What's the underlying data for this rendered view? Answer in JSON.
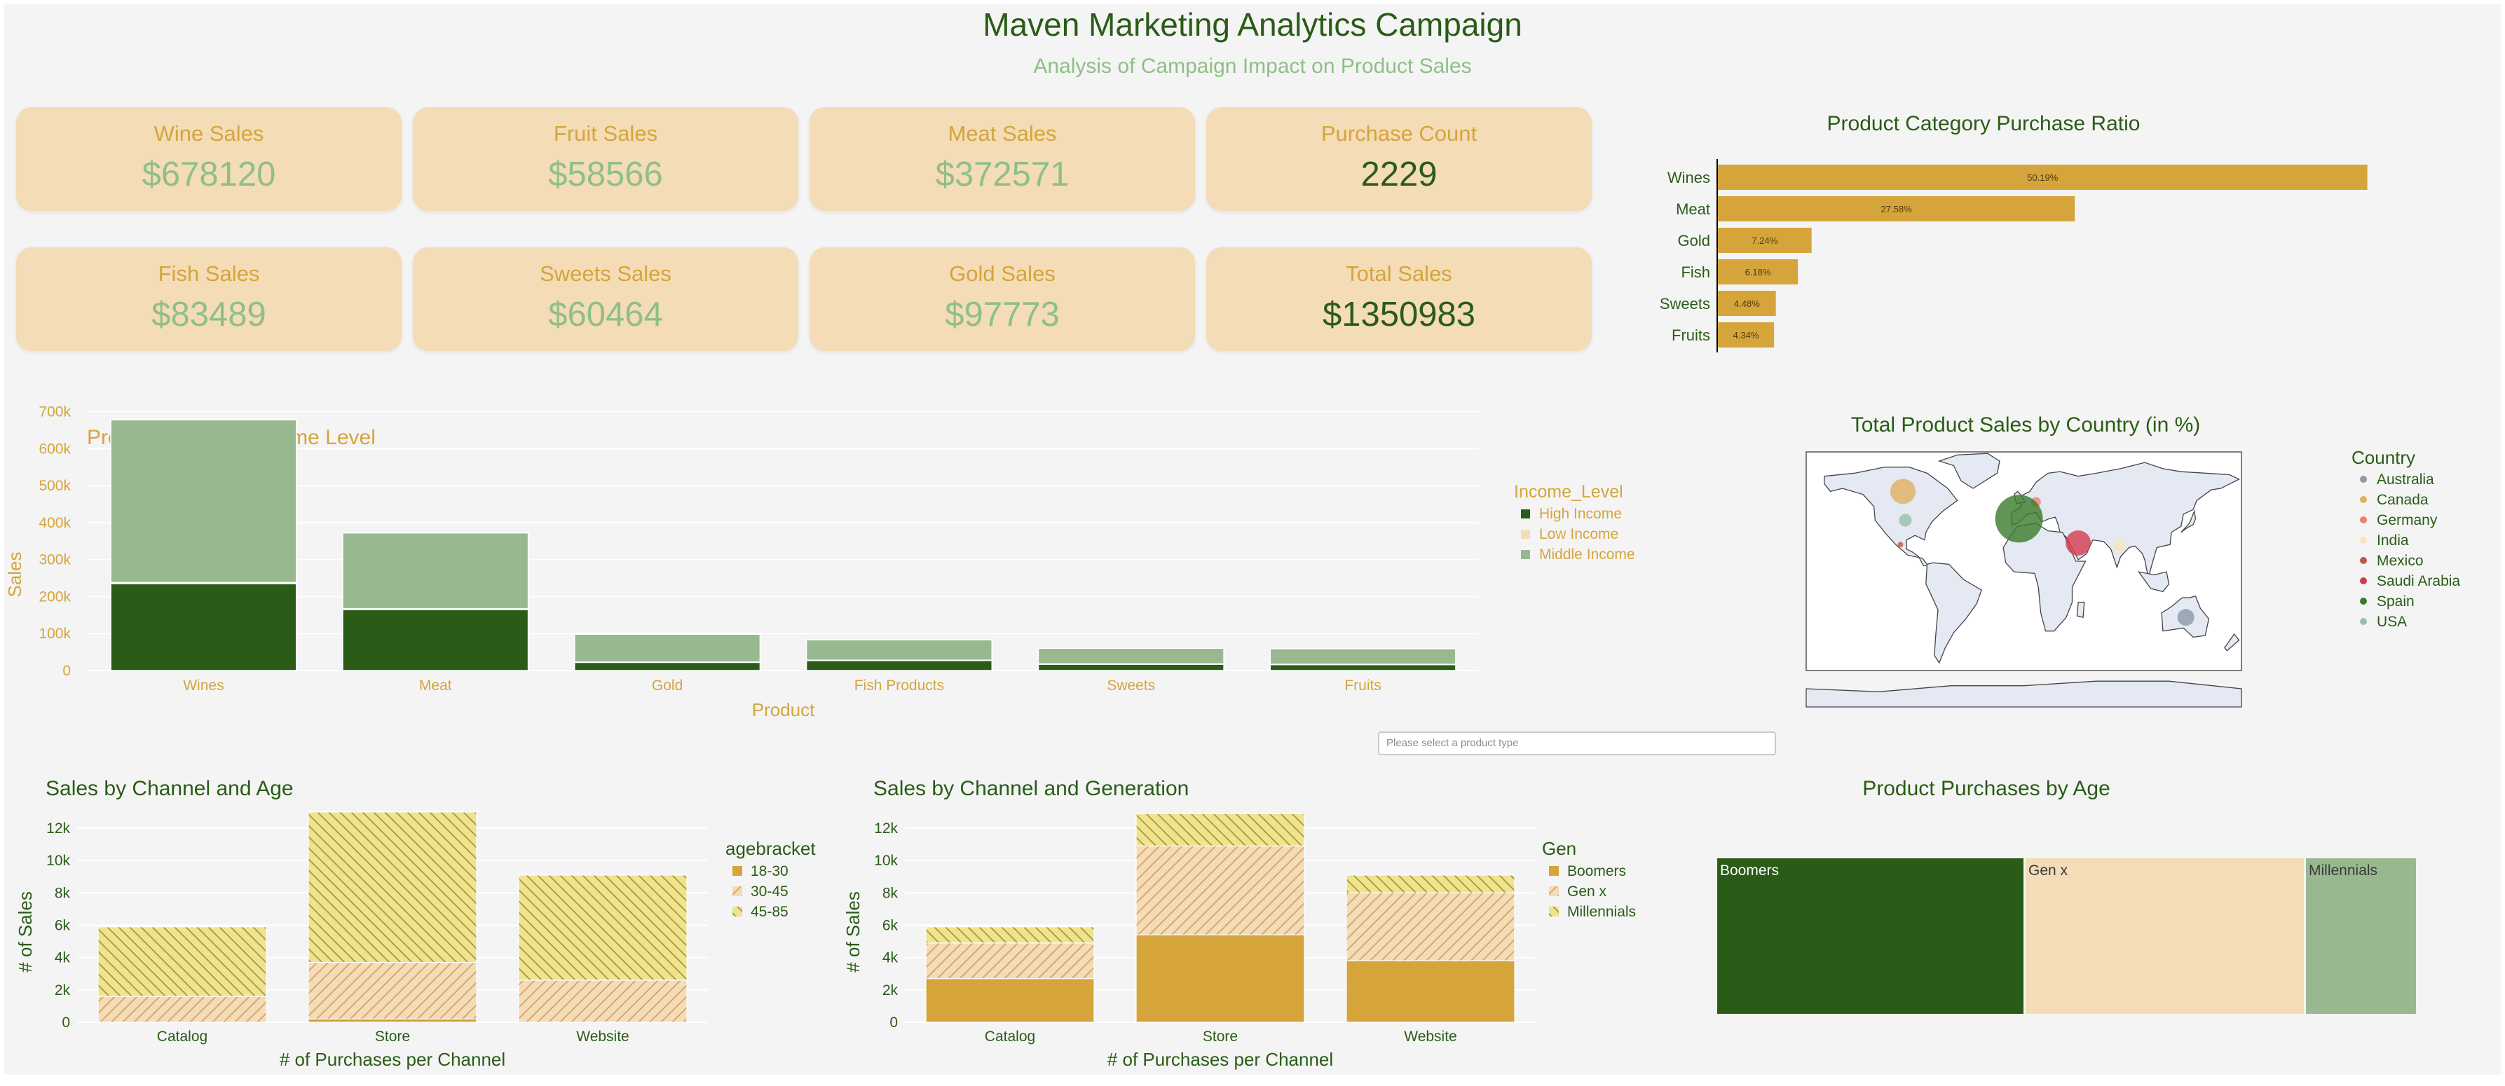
{
  "header": {
    "title": "Maven Marketing Analytics Campaign",
    "subtitle": "Analysis of Campaign Impact on Product Sales"
  },
  "kpis": [
    {
      "label": "Wine Sales",
      "value": "$678120",
      "emphasis": false
    },
    {
      "label": "Fruit Sales",
      "value": "$58566",
      "emphasis": false
    },
    {
      "label": "Meat Sales",
      "value": "$372571",
      "emphasis": false
    },
    {
      "label": "Purchase Count",
      "value": "2229",
      "emphasis": true
    },
    {
      "label": "Fish Sales",
      "value": "$83489",
      "emphasis": false
    },
    {
      "label": "Sweets Sales",
      "value": "$60464",
      "emphasis": false
    },
    {
      "label": "Gold Sales",
      "value": "$97773",
      "emphasis": false
    },
    {
      "label": "Total Sales",
      "value": "$1350983",
      "emphasis": true
    }
  ],
  "dropdown": {
    "placeholder": "Please select a product type"
  },
  "colors": {
    "dark_green": "#2a5c17",
    "light_green": "#98b990",
    "gold": "#d5a53b",
    "beige": "#f3dcb6",
    "hatch_yellow": "#efe38f"
  },
  "chart_data": [
    {
      "id": "ratio",
      "type": "bar",
      "orientation": "horizontal",
      "title": "Product Category Purchase Ratio",
      "categories": [
        "Wines",
        "Meat",
        "Gold",
        "Fish",
        "Sweets",
        "Fruits"
      ],
      "values": [
        50.19,
        27.58,
        7.24,
        6.18,
        4.48,
        4.34
      ],
      "labels": [
        "50.19%",
        "27.58%",
        "7.24%",
        "6.18%",
        "4.48%",
        "4.34%"
      ],
      "xlim": [
        0,
        52
      ]
    },
    {
      "id": "income",
      "type": "bar",
      "stacked": true,
      "title": "Product Sales vs Income Level",
      "xlabel": "Product",
      "ylabel": "Sales",
      "categories": [
        "Wines",
        "Meat",
        "Gold",
        "Fish Products",
        "Sweets",
        "Fruits"
      ],
      "series": [
        {
          "name": "High Income",
          "color": "#2a5c17",
          "values": [
            235000,
            165000,
            22000,
            27000,
            17000,
            16000
          ]
        },
        {
          "name": "Low Income",
          "color": "#f3dcb6",
          "values": [
            3000,
            2000,
            1000,
            1000,
            1000,
            1000
          ]
        },
        {
          "name": "Middle Income",
          "color": "#98b990",
          "values": [
            440000,
            205000,
            75000,
            55000,
            42000,
            42000
          ]
        }
      ],
      "ylim": [
        0,
        720000
      ],
      "yticks": [
        0,
        100000,
        200000,
        300000,
        400000,
        500000,
        600000,
        700000
      ],
      "ytick_labels": [
        "0",
        "100k",
        "200k",
        "300k",
        "400k",
        "500k",
        "600k",
        "700k"
      ],
      "legend_title": "Income_Level"
    },
    {
      "id": "map",
      "type": "scatter",
      "subtype": "geo-bubble",
      "title": "Total Product Sales by Country (in %)",
      "legend_title": "Country",
      "countries": [
        {
          "name": "Australia",
          "color": "#8a9aa8",
          "lon": 134,
          "lat": -25,
          "size": 12
        },
        {
          "name": "Canada",
          "color": "#e0b060",
          "lon": -100,
          "lat": 58,
          "size": 18
        },
        {
          "name": "Germany",
          "color": "#f08070",
          "lon": 10,
          "lat": 51,
          "size": 7
        },
        {
          "name": "India",
          "color": "#f6e6c0",
          "lon": 79,
          "lat": 22,
          "size": 9
        },
        {
          "name": "Mexico",
          "color": "#c05848",
          "lon": -102,
          "lat": 23,
          "size": 4
        },
        {
          "name": "Saudi Arabia",
          "color": "#d43a4e",
          "lon": 45,
          "lat": 24,
          "size": 18
        },
        {
          "name": "Spain",
          "color": "#3a7a2a",
          "lon": -4,
          "lat": 40,
          "size": 34
        },
        {
          "name": "USA",
          "color": "#98c0a8",
          "lon": -98,
          "lat": 39,
          "size": 9
        }
      ]
    },
    {
      "id": "age_channel",
      "type": "bar",
      "stacked": true,
      "title": "Sales by Channel and Age",
      "xlabel": "# of Purchases per Channel",
      "ylabel": "# of Sales",
      "categories": [
        "Catalog",
        "Store",
        "Website"
      ],
      "series": [
        {
          "name": "18-30",
          "color": "#d5a53b",
          "pattern": "none",
          "values": [
            0,
            200,
            0
          ]
        },
        {
          "name": "30-45",
          "color": "#f3dcb6",
          "pattern": "slash",
          "values": [
            1600,
            3500,
            2600
          ]
        },
        {
          "name": "45-85",
          "color": "#efe38f",
          "pattern": "backslash",
          "values": [
            4300,
            9300,
            6500
          ]
        }
      ],
      "ylim": [
        0,
        13000
      ],
      "yticks": [
        0,
        2000,
        4000,
        6000,
        8000,
        10000,
        12000
      ],
      "ytick_labels": [
        "0",
        "2k",
        "4k",
        "6k",
        "8k",
        "10k",
        "12k"
      ],
      "legend_title": "agebracket"
    },
    {
      "id": "gen_channel",
      "type": "bar",
      "stacked": true,
      "title": "Sales by Channel and Generation",
      "xlabel": "# of Purchases per Channel",
      "ylabel": "# of Sales",
      "categories": [
        "Catalog",
        "Store",
        "Website"
      ],
      "series": [
        {
          "name": "Boomers",
          "color": "#d5a53b",
          "pattern": "none",
          "values": [
            2700,
            5400,
            3800
          ]
        },
        {
          "name": "Gen x",
          "color": "#f3dcb6",
          "pattern": "slash",
          "values": [
            2200,
            5500,
            4200
          ]
        },
        {
          "name": "Millennials",
          "color": "#efe38f",
          "pattern": "backslash",
          "values": [
            1000,
            2000,
            1100
          ]
        }
      ],
      "ylim": [
        0,
        13000
      ],
      "yticks": [
        0,
        2000,
        4000,
        6000,
        8000,
        10000,
        12000
      ],
      "ytick_labels": [
        "0",
        "2k",
        "4k",
        "6k",
        "8k",
        "10k",
        "12k"
      ],
      "legend_title": "Gen"
    },
    {
      "id": "treemap",
      "type": "treemap",
      "title": "Product Purchases by Age",
      "items": [
        {
          "name": "Boomers",
          "color": "#2a5c17",
          "text_color": "#ffffff",
          "value": 44
        },
        {
          "name": "Gen x",
          "color": "#f3dcb6",
          "text_color": "#3a3a3a",
          "value": 40
        },
        {
          "name": "Millennials",
          "color": "#98b990",
          "text_color": "#3a3a3a",
          "value": 16
        }
      ]
    }
  ]
}
